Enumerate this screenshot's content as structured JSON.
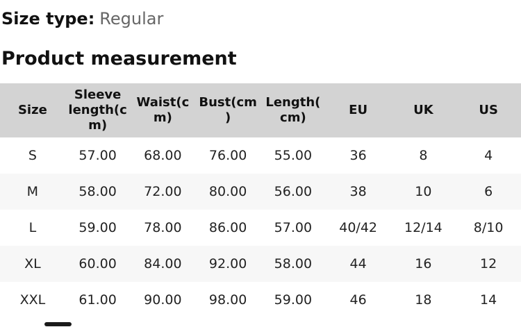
{
  "header": {
    "size_type_label": "Size type:",
    "size_type_value": "Regular",
    "section_title": "Product measurement"
  },
  "colors": {
    "table_header_bg": "#d3d3d3",
    "row_alt_bg": "#f7f7f7",
    "primary_text": "#111111",
    "muted_text": "#666666",
    "scrollbar": "#1a1a1a"
  },
  "table": {
    "columns": [
      "Size",
      "Sleeve length(cm)",
      "Waist(cm)",
      "Bust(cm)",
      "Length(cm)",
      "EU",
      "UK",
      "US"
    ],
    "rows": [
      [
        "S",
        "57.00",
        "68.00",
        "76.00",
        "55.00",
        "36",
        "8",
        "4"
      ],
      [
        "M",
        "58.00",
        "72.00",
        "80.00",
        "56.00",
        "38",
        "10",
        "6"
      ],
      [
        "L",
        "59.00",
        "78.00",
        "86.00",
        "57.00",
        "40/42",
        "12/14",
        "8/10"
      ],
      [
        "XL",
        "60.00",
        "84.00",
        "92.00",
        "58.00",
        "44",
        "16",
        "12"
      ],
      [
        "XXL",
        "61.00",
        "90.00",
        "98.00",
        "59.00",
        "46",
        "18",
        "14"
      ]
    ]
  }
}
